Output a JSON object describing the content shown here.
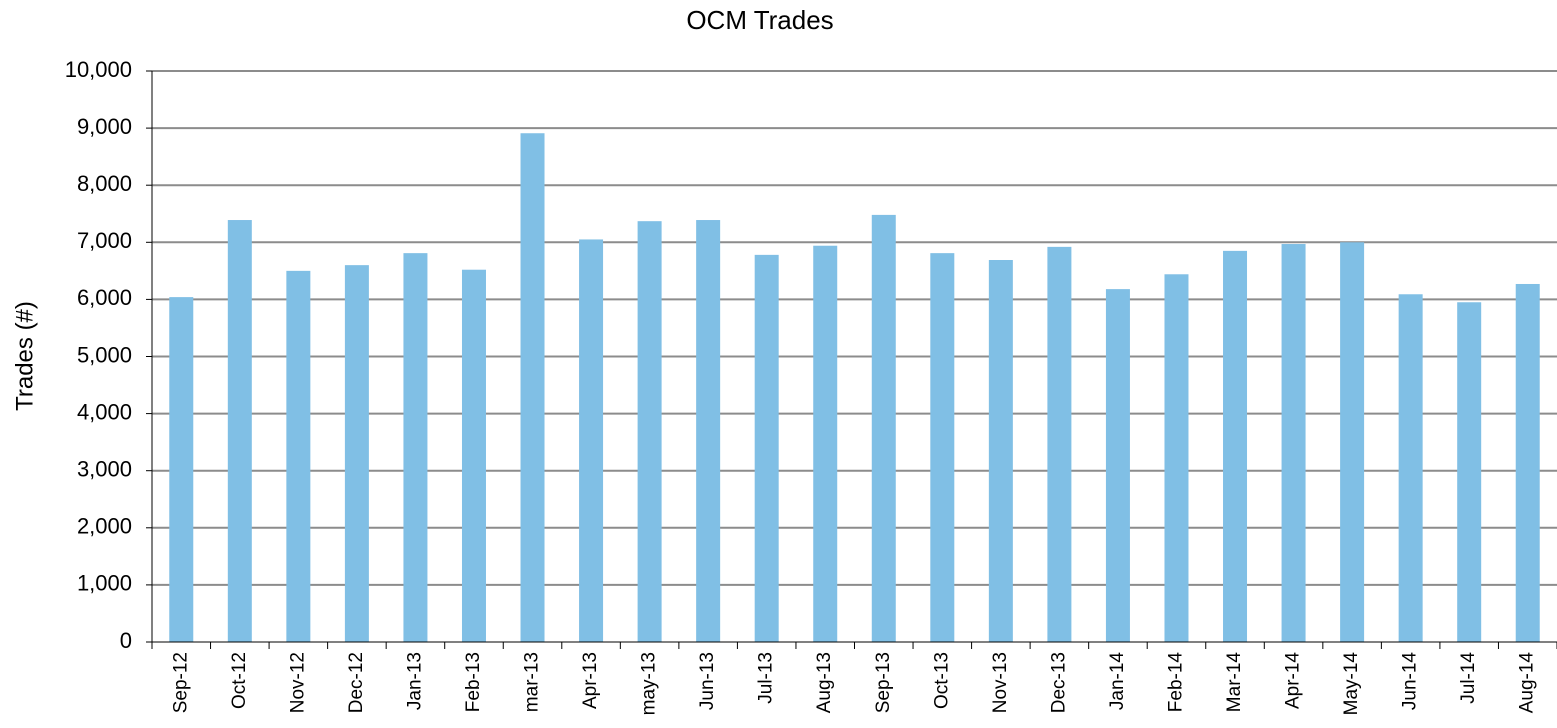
{
  "chart_data": {
    "type": "bar",
    "title": "OCM Trades",
    "y_label": "Trades (#)",
    "categories": [
      "Sep-12",
      "Oct-12",
      "Nov-12",
      "Dec-12",
      "Jan-13",
      "Feb-13",
      "mar-13",
      "Apr-13",
      "may-13",
      "Jun-13",
      "Jul-13",
      "Aug-13",
      "Sep-13",
      "Oct-13",
      "Nov-13",
      "Dec-13",
      "Jan-14",
      "Feb-14",
      "Mar-14",
      "Apr-14",
      "May-14",
      "Jun-14",
      "Jul-14",
      "Aug-14"
    ],
    "values": [
      6040,
      7390,
      6500,
      6600,
      6810,
      6520,
      8910,
      7050,
      7370,
      7390,
      6780,
      6940,
      7480,
      6810,
      6690,
      6920,
      6180,
      6440,
      6850,
      6970,
      7000,
      6090,
      5950,
      6270
    ],
    "color": "#80bfe5",
    "ylim": [
      0,
      10000
    ],
    "yticks": [
      0,
      {
        "value": 1000,
        "label": "1,000"
      },
      {
        "value": 2000,
        "label": "2,000"
      },
      {
        "value": 3000,
        "label": "3,000"
      },
      {
        "value": 4000,
        "label": "4,000"
      },
      {
        "value": 5000,
        "label": "5,000"
      },
      {
        "value": 6000,
        "label": "6,000"
      },
      {
        "value": 7000,
        "label": "7,000"
      },
      {
        "value": 8000,
        "label": "8,000"
      },
      {
        "value": 9000,
        "label": "9,000"
      },
      {
        "value": 10000,
        "label": "10,000"
      }
    ],
    "grid": true
  }
}
